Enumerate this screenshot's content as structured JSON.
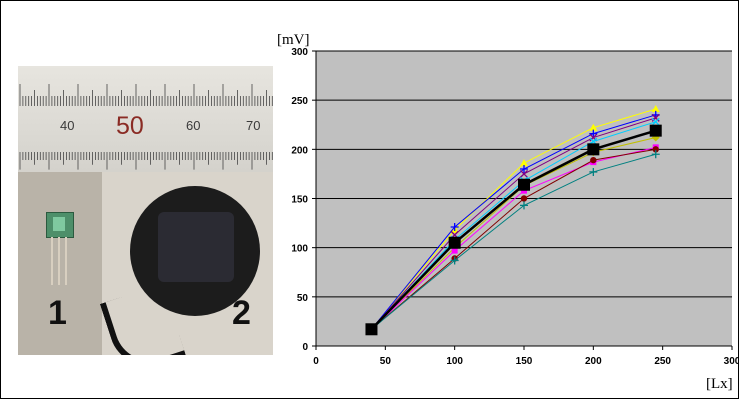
{
  "photo": {
    "label_1": "1",
    "label_2": "2",
    "ruler_numbers": [
      "40",
      "50",
      "60",
      "70"
    ]
  },
  "chart_data": {
    "type": "line",
    "ylabel": "[mV]",
    "xlabel": "[Lx]",
    "xlim": [
      0,
      300
    ],
    "ylim": [
      0,
      300
    ],
    "xticks": [
      0,
      50,
      100,
      150,
      200,
      250,
      300
    ],
    "yticks": [
      0,
      50,
      100,
      150,
      200,
      250,
      300
    ],
    "grid": "horizontal",
    "background": "#c0c0c0",
    "x": [
      40,
      100,
      150,
      200,
      245
    ],
    "series": [
      {
        "color": "#ffff00",
        "marker": "triangle",
        "values": [
          17,
          118,
          186,
          222,
          241
        ]
      },
      {
        "color": "#0000ff",
        "marker": "plus",
        "values": [
          17,
          121,
          180,
          216,
          235
        ]
      },
      {
        "color": "#800080",
        "marker": "x",
        "values": [
          17,
          113,
          175,
          212,
          232
        ]
      },
      {
        "color": "#00ccff",
        "marker": "x",
        "values": [
          17,
          108,
          168,
          208,
          228
        ]
      },
      {
        "color": "#c0c000",
        "marker": "diamond",
        "values": [
          17,
          100,
          163,
          197,
          212
        ]
      },
      {
        "color": "#ff00ff",
        "marker": "square",
        "values": [
          17,
          97,
          158,
          187,
          202
        ]
      },
      {
        "color": "#800000",
        "marker": "circle",
        "values": [
          17,
          89,
          150,
          189,
          200
        ]
      },
      {
        "color": "#008080",
        "marker": "plus",
        "values": [
          17,
          87,
          143,
          177,
          195
        ]
      },
      {
        "color": "#000000",
        "marker": "bigsquare",
        "values": [
          17,
          105,
          164,
          200,
          219
        ]
      }
    ]
  }
}
